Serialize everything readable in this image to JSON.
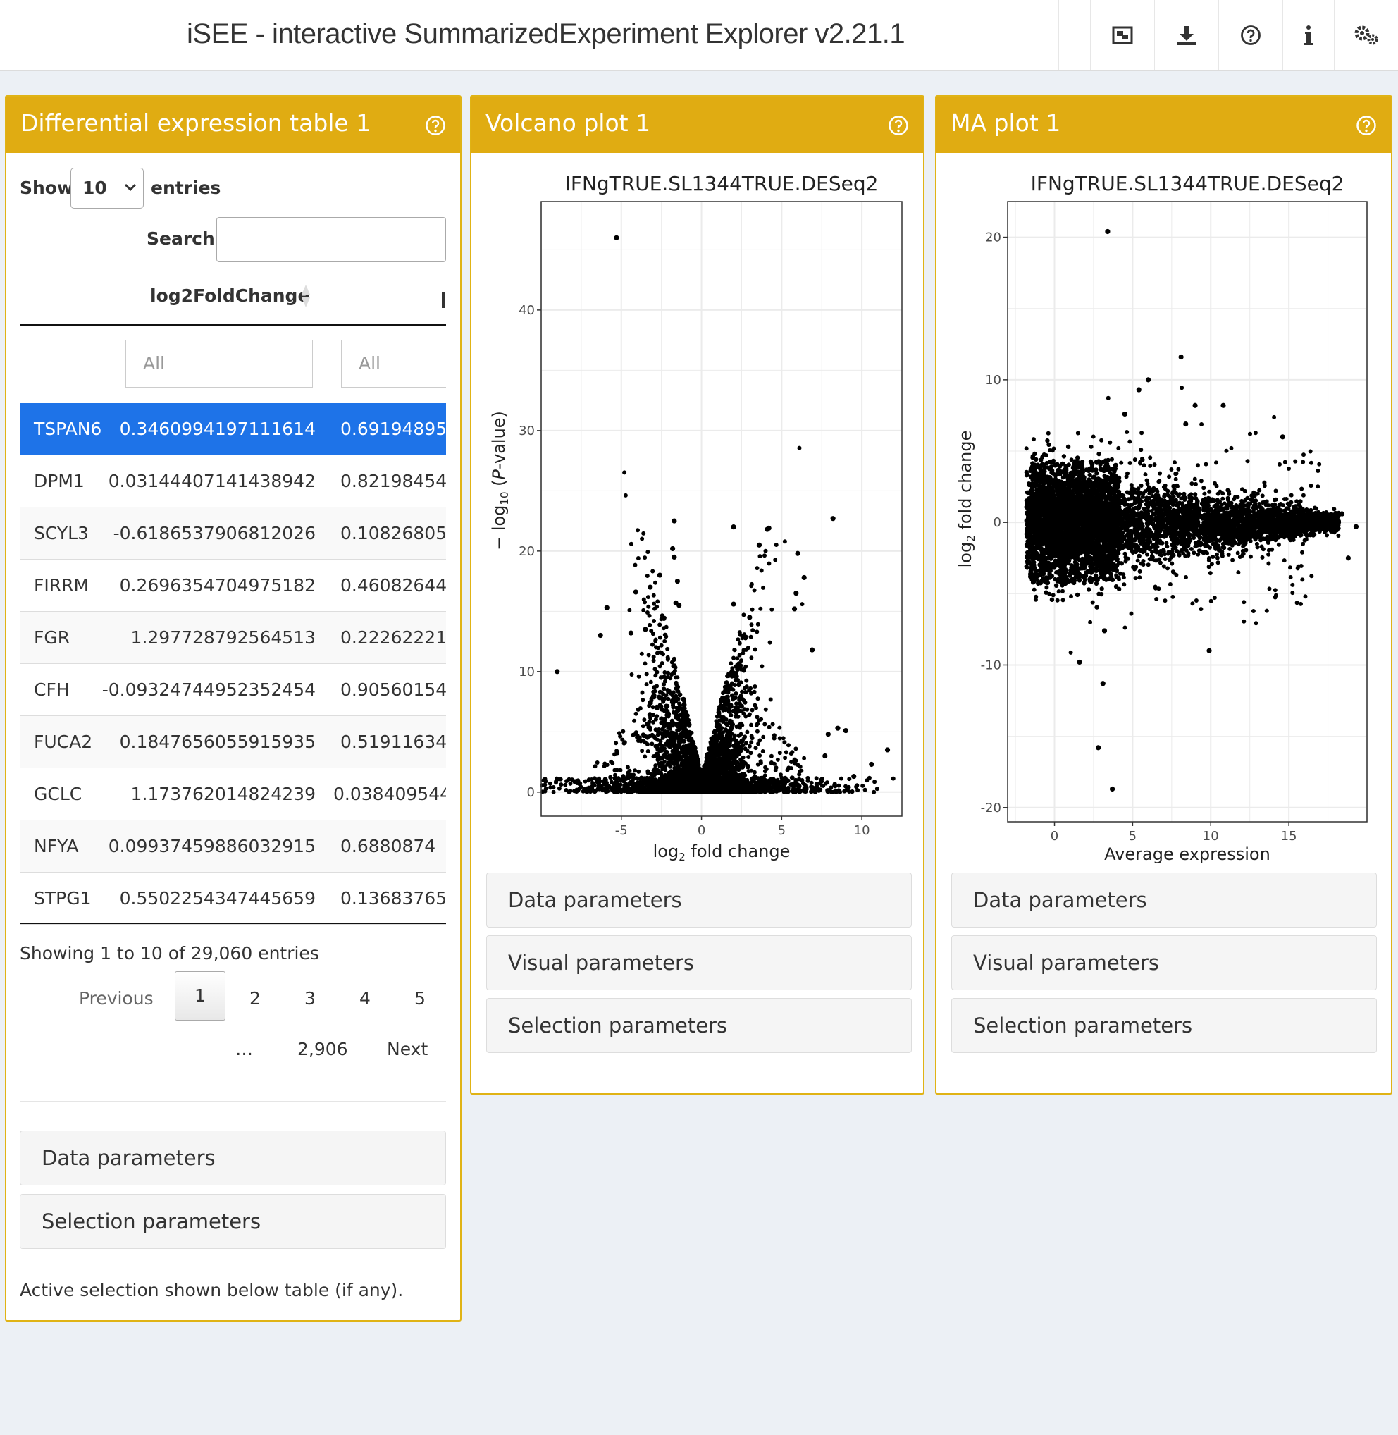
{
  "header": {
    "title": "iSEE - interactive SummarizedExperiment Explorer v2.21.1",
    "tools": [
      "screenshot-icon",
      "download-icon",
      "help-circle-icon",
      "info-icon",
      "settings-gears-icon"
    ]
  },
  "colors": {
    "header_bar": "#e0ac12",
    "selected_row": "#1e73e8",
    "page_bg": "#ecf0f5"
  },
  "table_panel": {
    "title": "Differential expression table 1",
    "show_label": "Show",
    "entries_value": "10",
    "entries_label": "entries",
    "search_label": "Search:",
    "search_value": "",
    "column_header": "log2FoldChange",
    "filter_placeholder_1": "All",
    "filter_placeholder_2": "All",
    "rows": [
      {
        "gene": "TSPAN6",
        "lfc": "0.3460994197111614",
        "p": "0.69194895",
        "selected": true
      },
      {
        "gene": "DPM1",
        "lfc": "0.03144407141438942",
        "p": "0.82198454"
      },
      {
        "gene": "SCYL3",
        "lfc": "-0.6186537906812026",
        "p": "0.10826805"
      },
      {
        "gene": "FIRRM",
        "lfc": "0.2696354704975182",
        "p": "0.46082644"
      },
      {
        "gene": "FGR",
        "lfc": "1.297728792564513",
        "p": "0.22262221"
      },
      {
        "gene": "CFH",
        "lfc": "-0.09324744952352454",
        "p": "0.90560154"
      },
      {
        "gene": "FUCA2",
        "lfc": "0.1847656055915935",
        "p": "0.51911634"
      },
      {
        "gene": "GCLC",
        "lfc": "1.173762014824239",
        "p": "0.038409544"
      },
      {
        "gene": "NFYA",
        "lfc": "0.09937459886032915",
        "p": "0.6880874"
      },
      {
        "gene": "STPG1",
        "lfc": "0.5502254347445659",
        "p": "0.13683765"
      }
    ],
    "info": "Showing 1 to 10 of 29,060 entries",
    "pager": {
      "previous": "Previous",
      "pages": [
        "1",
        "2",
        "3",
        "4",
        "5"
      ],
      "ellipsis": "…",
      "last": "2,906",
      "next": "Next"
    },
    "buttons": [
      "Data parameters",
      "Selection parameters"
    ],
    "footnote": "Active selection shown below table (if any)."
  },
  "volcano_panel": {
    "title": "Volcano plot 1",
    "buttons": [
      "Data parameters",
      "Visual parameters",
      "Selection parameters"
    ]
  },
  "ma_panel": {
    "title": "MA plot 1",
    "buttons": [
      "Data parameters",
      "Visual parameters",
      "Selection parameters"
    ]
  },
  "chart_data": [
    {
      "type": "scatter",
      "title": "IFNgTRUE.SL1344TRUE.DESeq2",
      "xlabel": "log2 fold change",
      "ylabel": "-log10 (P-value)",
      "xlim": [
        -10,
        12.5
      ],
      "ylim": [
        -2,
        49
      ],
      "xticks": [
        -5,
        0,
        5,
        10
      ],
      "yticks": [
        0,
        10,
        20,
        30,
        40
      ],
      "grid": true,
      "points": [
        [
          -5.3,
          46.0
        ],
        [
          -9.0,
          10.0
        ],
        [
          -7.6,
          0.7
        ],
        [
          -1.7,
          22.5
        ],
        [
          -1.8,
          20.2
        ],
        [
          -1.7,
          19.5
        ],
        [
          -1.5,
          17.5
        ],
        [
          -3.2,
          17.0
        ],
        [
          -4.1,
          16.6
        ],
        [
          -2.6,
          18.0
        ],
        [
          -1.6,
          15.7
        ],
        [
          -1.4,
          15.5
        ],
        [
          -5.9,
          15.3
        ],
        [
          -6.3,
          13.0
        ],
        [
          -4.4,
          13.2
        ],
        [
          -3.5,
          13.5
        ],
        [
          2.0,
          22.0
        ],
        [
          4.1,
          21.8
        ],
        [
          4.2,
          21.9
        ],
        [
          3.6,
          20.5
        ],
        [
          8.2,
          22.7
        ],
        [
          6.0,
          19.8
        ],
        [
          6.4,
          17.8
        ],
        [
          5.9,
          16.5
        ],
        [
          2.0,
          15.6
        ],
        [
          5.8,
          15.2
        ],
        [
          3.0,
          14.5
        ],
        [
          6.9,
          11.8
        ],
        [
          8.5,
          5.3
        ],
        [
          9.0,
          5.1
        ],
        [
          7.9,
          4.8
        ],
        [
          7.7,
          3.0
        ],
        [
          10.6,
          2.3
        ],
        [
          11.6,
          3.5
        ],
        [
          9.5,
          1.3
        ]
      ],
      "cloud": {
        "description_none": "",
        "center_x": 0,
        "left_arm_peak": [
          -1.8,
          12.0
        ],
        "right_arm_peak": [
          2.5,
          11.0
        ]
      }
    },
    {
      "type": "scatter",
      "title": "IFNgTRUE.SL1344TRUE.DESeq2",
      "xlabel": "Average expression",
      "ylabel": "log2 fold change",
      "xlim": [
        -3,
        20
      ],
      "ylim": [
        -21,
        22.5
      ],
      "xticks": [
        0,
        5,
        10,
        15
      ],
      "yticks": [
        -20,
        -10,
        0,
        10,
        20
      ],
      "grid": true,
      "points": [
        [
          3.4,
          20.4
        ],
        [
          8.1,
          11.6
        ],
        [
          6.0,
          10.0
        ],
        [
          5.4,
          9.3
        ],
        [
          9.0,
          8.2
        ],
        [
          10.8,
          8.2
        ],
        [
          4.5,
          7.6
        ],
        [
          8.4,
          6.9
        ],
        [
          3.2,
          -7.6
        ],
        [
          1.6,
          -9.8
        ],
        [
          3.1,
          -11.3
        ],
        [
          2.8,
          -15.8
        ],
        [
          3.7,
          -18.7
        ],
        [
          9.9,
          -9.0
        ],
        [
          18.8,
          -2.5
        ],
        [
          19.3,
          -0.3
        ],
        [
          18.4,
          0.6
        ],
        [
          14.6,
          6.0
        ]
      ]
    }
  ]
}
